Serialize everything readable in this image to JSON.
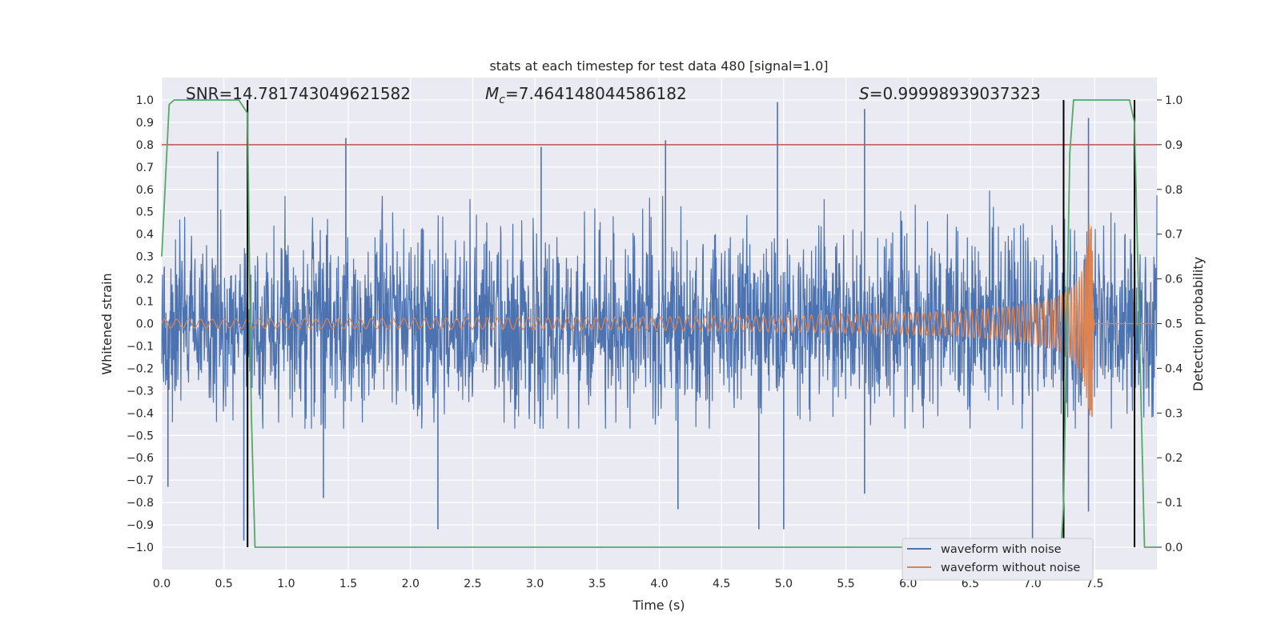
{
  "chart_data": {
    "type": "line",
    "title": "stats at each timestep for test data 480 [signal=1.0]",
    "xlabel": "Time (s)",
    "ylabel": "Whitened strain",
    "y2label": "Detection probability",
    "xlim": [
      0.0,
      8.0
    ],
    "ylim": [
      -1.1,
      1.1
    ],
    "y2lim": [
      -0.05,
      1.05
    ],
    "xticks": [
      "0.0",
      "0.5",
      "1.0",
      "1.5",
      "2.0",
      "2.5",
      "3.0",
      "3.5",
      "4.0",
      "4.5",
      "5.0",
      "5.5",
      "6.0",
      "6.5",
      "7.0",
      "7.5"
    ],
    "yticks": [
      "1.0",
      "0.9",
      "0.8",
      "0.7",
      "0.6",
      "0.5",
      "0.4",
      "0.3",
      "0.2",
      "0.1",
      "0.0",
      "−0.1",
      "−0.2",
      "−0.3",
      "−0.4",
      "−0.5",
      "−0.6",
      "−0.7",
      "−0.8",
      "−0.9",
      "−1.0"
    ],
    "y2ticks": [
      "1.0",
      "0.9",
      "0.8",
      "0.7",
      "0.6",
      "0.5",
      "0.4",
      "0.3",
      "0.2",
      "0.1",
      "0.0"
    ],
    "grid": true,
    "legend_position": "lower-right",
    "annotations": {
      "snr": "SNR=14.781743049621582",
      "mc_symbol": "M",
      "mc_sub": "c",
      "mc_value": "=7.464148044586182",
      "s_symbol": "S",
      "s_value": "=0.99998939037323"
    },
    "series": [
      {
        "name": "waveform with noise",
        "color": "#4c72b0",
        "description_of_values": "white noise, peaks",
        "noise_envelope": [
          -0.42,
          0.4
        ],
        "peaks": [
          {
            "x": 0.05,
            "y": -0.73
          },
          {
            "x": 0.45,
            "y": 0.77
          },
          {
            "x": 0.66,
            "y": -0.97
          },
          {
            "x": 1.48,
            "y": 0.83
          },
          {
            "x": 1.3,
            "y": -0.78
          },
          {
            "x": 2.22,
            "y": -0.92
          },
          {
            "x": 3.05,
            "y": 0.79
          },
          {
            "x": 4.05,
            "y": 0.82
          },
          {
            "x": 4.15,
            "y": -0.83
          },
          {
            "x": 4.95,
            "y": 0.99
          },
          {
            "x": 4.8,
            "y": -0.92
          },
          {
            "x": 5.65,
            "y": 0.96
          },
          {
            "x": 5.0,
            "y": -0.92
          },
          {
            "x": 5.65,
            "y": -0.76
          },
          {
            "x": 7.0,
            "y": -0.98
          },
          {
            "x": 7.45,
            "y": 0.92
          },
          {
            "x": 7.45,
            "y": -0.84
          }
        ]
      },
      {
        "name": "waveform without noise",
        "color": "#dd8452",
        "amplitude_start": 0.02,
        "amplitude_peak": 0.45,
        "merger_time": 7.48,
        "ringdown_end": 7.5
      },
      {
        "name": "",
        "color": "#55a868",
        "axis": "right",
        "points": [
          [
            0.0,
            0.65
          ],
          [
            0.06,
            0.99
          ],
          [
            0.1,
            1.0
          ],
          [
            0.62,
            1.0
          ],
          [
            0.69,
            0.97
          ],
          [
            0.72,
            0.3
          ],
          [
            0.75,
            0.0
          ],
          [
            7.23,
            0.0
          ],
          [
            7.25,
            0.1
          ],
          [
            7.3,
            0.88
          ],
          [
            7.33,
            1.0
          ],
          [
            7.78,
            1.0
          ],
          [
            7.82,
            0.95
          ],
          [
            7.9,
            0.0
          ],
          [
            8.0,
            0.0
          ]
        ]
      }
    ],
    "threshold_line": {
      "y2": 0.9,
      "color": "#c44e52"
    },
    "vertical_markers": {
      "x": [
        0.69,
        7.25,
        7.82
      ],
      "y2_range": [
        0.0,
        1.0
      ],
      "color": "#000000"
    }
  }
}
